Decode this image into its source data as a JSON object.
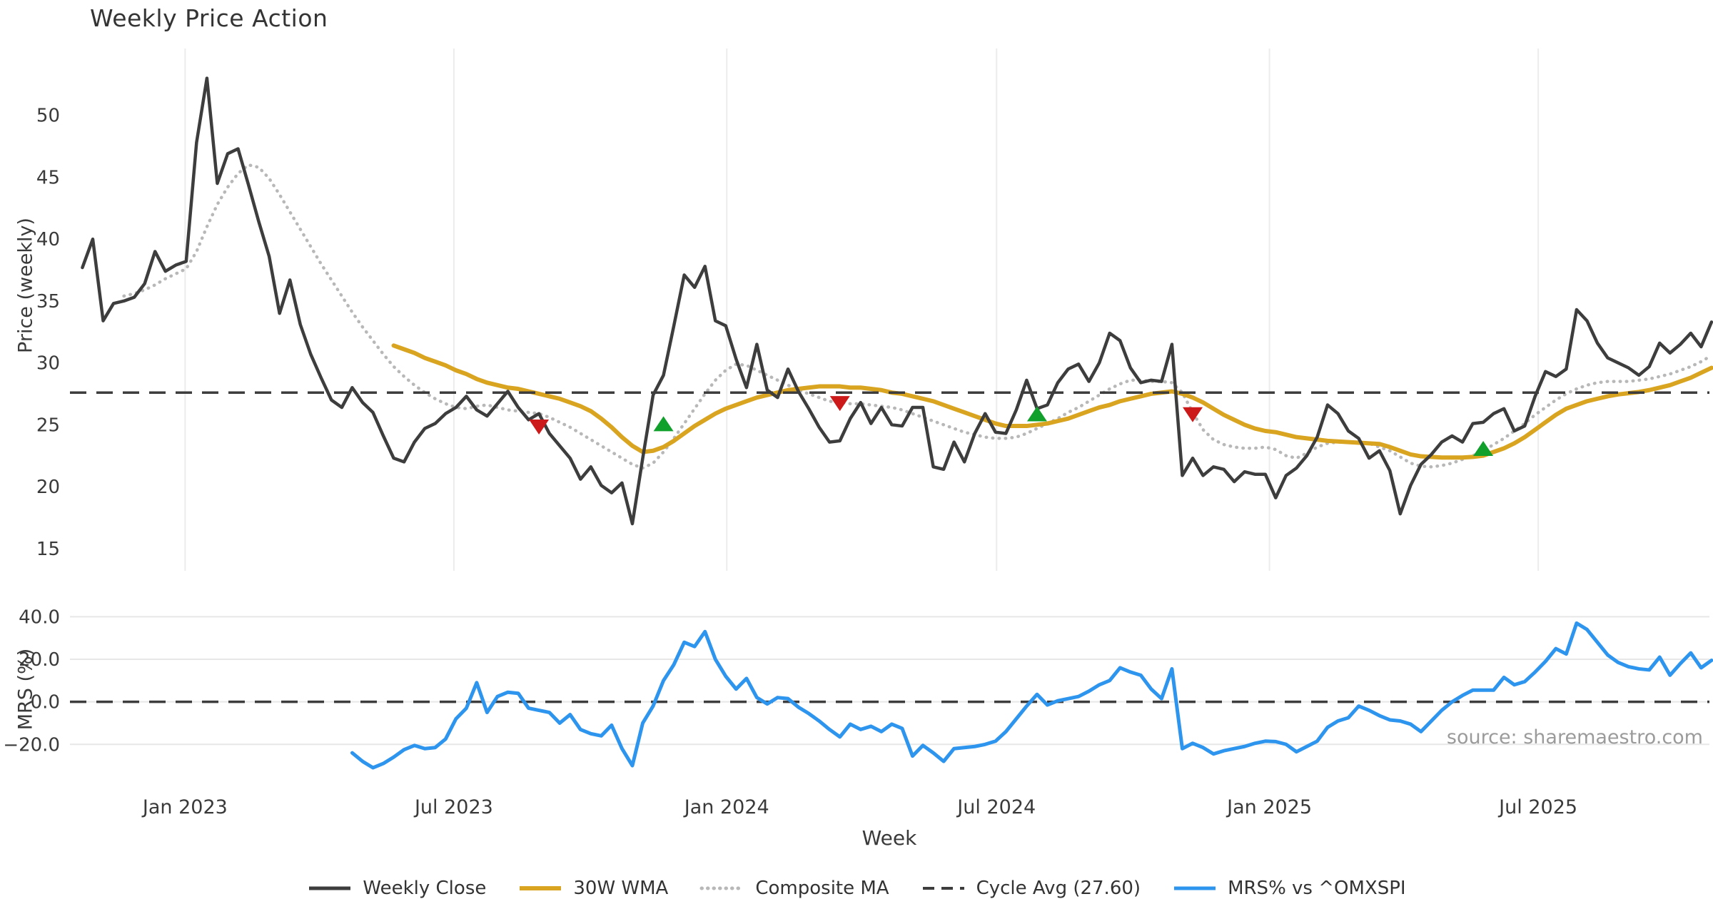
{
  "title": "Weekly Price Action",
  "xlabel": "Week",
  "source_text": "source: sharemaestro.com",
  "colors": {
    "weekly_close": "#3d3d3d",
    "wma30": "#d9a41f",
    "composite": "#b8b8b8",
    "cycle_avg": "#3d3d3d",
    "mrs": "#2e95ee",
    "sell_marker": "#cc1a1a",
    "buy_marker": "#12a02d",
    "grid": "#ececec",
    "tick_text": "#3a3a3a"
  },
  "legend": [
    {
      "label": "Weekly Close",
      "color": "#3d3d3d",
      "style": "solid",
      "width": 5
    },
    {
      "label": "30W WMA",
      "color": "#d9a41f",
      "style": "solid",
      "width": 6
    },
    {
      "label": "Composite MA",
      "color": "#b8b8b8",
      "style": "dotted",
      "width": 5
    },
    {
      "label": "Cycle Avg (27.60)",
      "color": "#3d3d3d",
      "style": "dashed",
      "width": 4
    },
    {
      "label": "MRS% vs ^OMXSPI",
      "color": "#2e95ee",
      "style": "solid",
      "width": 5
    }
  ],
  "chart_data": {
    "type": "line",
    "title": "Weekly Price Action",
    "xlabel": "Week",
    "x_unit": "weeks since 2022-10-24 (weekly data)",
    "xlim": [
      -1.2,
      156.8
    ],
    "x_ticks": [
      {
        "label": "Jan 2023",
        "week": 9.9
      },
      {
        "label": "Jul 2023",
        "week": 35.8
      },
      {
        "label": "Jan 2024",
        "week": 62.1
      },
      {
        "label": "Jul 2024",
        "week": 88.1
      },
      {
        "label": "Jan 2025",
        "week": 114.4
      },
      {
        "label": "Jul 2025",
        "week": 140.3
      }
    ],
    "panels": [
      {
        "id": "price",
        "ylabel": "Price (weekly)",
        "ylim": [
          13.2,
          55.4
        ],
        "yticks": [
          15,
          20,
          25,
          30,
          35,
          40,
          45,
          50
        ],
        "ytick_labels": [
          "15",
          "20",
          "25",
          "30",
          "35",
          "40",
          "45",
          "50"
        ],
        "grid": "vertical",
        "cycle_avg": 27.6,
        "series": [
          {
            "name": "Composite MA",
            "color": "#b8b8b8",
            "width": 4.5,
            "dash": "dotted",
            "start_week": 4,
            "values": [
              35.4,
              35.6,
              35.9,
              36.3,
              36.8,
              37.2,
              37.6,
              39.0,
              41.0,
              42.8,
              44.2,
              45.3,
              46.0,
              45.8,
              44.9,
              43.6,
              42.2,
              40.8,
              39.4,
              38.0,
              36.7,
              35.4,
              34.1,
              32.9,
              31.8,
              30.7,
              29.7,
              28.9,
              28.2,
              27.6,
              27.1,
              26.7,
              26.4,
              26.3,
              26.5,
              26.6,
              26.4,
              26.2,
              26.1,
              26.0,
              25.9,
              25.6,
              25.2,
              24.8,
              24.3,
              23.8,
              23.3,
              22.8,
              22.3,
              21.8,
              21.5,
              21.9,
              22.8,
              23.9,
              25.1,
              26.3,
              27.5,
              28.6,
              29.4,
              29.9,
              29.8,
              29.4,
              29.0,
              28.6,
              28.2,
              27.8,
              27.5,
              27.2,
              26.9,
              26.8,
              26.7,
              26.7,
              26.6,
              26.5,
              26.4,
              26.2,
              25.9,
              25.6,
              25.3,
              25.0,
              24.7,
              24.4,
              24.2,
              24.0,
              23.9,
              23.9,
              24.0,
              24.3,
              24.7,
              25.1,
              25.5,
              26.0,
              26.4,
              26.9,
              27.4,
              27.9,
              28.3,
              28.6,
              28.6,
              28.5,
              28.5,
              28.4,
              27.6,
              26.0,
              24.6,
              23.8,
              23.4,
              23.2,
              23.1,
              23.1,
              23.2,
              23.0,
              22.5,
              22.3,
              22.7,
              23.2,
              23.5,
              23.6,
              23.6,
              23.65,
              23.5,
              23.2,
              22.9,
              22.4,
              21.9,
              21.65,
              21.6,
              21.7,
              21.9,
              22.2,
              22.5,
              22.9,
              23.4,
              23.9,
              24.5,
              25.1,
              25.8,
              26.4,
              27.0,
              27.5,
              27.9,
              28.2,
              28.4,
              28.5,
              28.5,
              28.5,
              28.6,
              28.7,
              28.9,
              29.1,
              29.4,
              29.7,
              30.1,
              30.6
            ]
          },
          {
            "name": "30W WMA",
            "color": "#d9a41f",
            "width": 6,
            "dash": null,
            "start_week": 30,
            "values": [
              31.4,
              31.1,
              30.8,
              30.4,
              30.1,
              29.8,
              29.4,
              29.1,
              28.7,
              28.4,
              28.2,
              28.0,
              27.9,
              27.7,
              27.5,
              27.3,
              27.1,
              26.8,
              26.5,
              26.1,
              25.5,
              24.8,
              24.0,
              23.3,
              22.8,
              22.9,
              23.2,
              23.7,
              24.3,
              24.9,
              25.4,
              25.9,
              26.3,
              26.6,
              26.9,
              27.2,
              27.4,
              27.6,
              27.8,
              27.9,
              28.0,
              28.1,
              28.1,
              28.1,
              28.0,
              28.0,
              27.9,
              27.8,
              27.6,
              27.5,
              27.3,
              27.1,
              26.9,
              26.6,
              26.3,
              26.0,
              25.7,
              25.4,
              25.1,
              24.9,
              24.9,
              24.9,
              25.0,
              25.1,
              25.3,
              25.5,
              25.8,
              26.1,
              26.4,
              26.6,
              26.9,
              27.1,
              27.3,
              27.5,
              27.6,
              27.7,
              27.5,
              27.2,
              26.8,
              26.3,
              25.8,
              25.4,
              25.0,
              24.7,
              24.5,
              24.4,
              24.2,
              24.0,
              23.9,
              23.8,
              23.7,
              23.65,
              23.6,
              23.55,
              23.5,
              23.45,
              23.2,
              22.9,
              22.6,
              22.45,
              22.4,
              22.35,
              22.35,
              22.35,
              22.4,
              22.5,
              22.8,
              23.1,
              23.5,
              24.0,
              24.6,
              25.2,
              25.8,
              26.3,
              26.6,
              26.9,
              27.1,
              27.3,
              27.45,
              27.55,
              27.65,
              27.8,
              28.0,
              28.2,
              28.5,
              28.8,
              29.2,
              29.6
            ]
          },
          {
            "name": "Weekly Close",
            "color": "#3d3d3d",
            "width": 4.5,
            "dash": null,
            "start_week": 0,
            "values": [
              37.7,
              40.0,
              33.4,
              34.8,
              35.0,
              35.3,
              36.4,
              39.0,
              37.4,
              37.9,
              38.2,
              47.8,
              53.0,
              44.5,
              46.9,
              47.3,
              44.4,
              41.4,
              38.6,
              34.0,
              36.7,
              33.1,
              30.7,
              28.8,
              27.0,
              26.4,
              28.0,
              26.8,
              26.0,
              24.1,
              22.3,
              22.0,
              23.6,
              24.7,
              25.1,
              25.9,
              26.4,
              27.3,
              26.2,
              25.7,
              26.7,
              27.7,
              26.4,
              25.4,
              25.9,
              24.3,
              23.3,
              22.3,
              20.6,
              21.6,
              20.1,
              19.5,
              20.3,
              17.0,
              22.3,
              27.4,
              29.0,
              33.0,
              37.1,
              36.1,
              37.8,
              33.4,
              33.0,
              30.3,
              28.0,
              31.5,
              27.8,
              27.2,
              29.5,
              27.7,
              26.3,
              24.8,
              23.6,
              23.7,
              25.5,
              26.8,
              25.1,
              26.4,
              25.0,
              24.9,
              26.4,
              26.4,
              21.6,
              21.4,
              23.6,
              22.0,
              24.3,
              25.9,
              24.4,
              24.3,
              26.2,
              28.6,
              26.3,
              26.6,
              28.4,
              29.5,
              29.9,
              28.5,
              30.0,
              32.4,
              31.8,
              29.6,
              28.4,
              28.6,
              28.5,
              31.5,
              20.9,
              22.3,
              20.9,
              21.6,
              21.4,
              20.4,
              21.2,
              21.0,
              21.0,
              19.1,
              20.9,
              21.5,
              22.5,
              24.0,
              26.6,
              25.9,
              24.5,
              23.9,
              22.3,
              22.9,
              21.3,
              17.8,
              20.1,
              21.8,
              22.6,
              23.6,
              24.1,
              23.6,
              25.1,
              25.2,
              25.9,
              26.3,
              24.5,
              24.9,
              27.3,
              29.3,
              28.9,
              29.5,
              34.3,
              33.4,
              31.6,
              30.4,
              30.0,
              29.6,
              29.0,
              29.7,
              31.6,
              30.8,
              31.5,
              32.4,
              31.3,
              33.3
            ]
          }
        ],
        "markers": {
          "sell": {
            "symbol": "triangle-down",
            "color": "#cc1a1a",
            "points": [
              [
                44,
                24.9
              ],
              [
                73,
                26.8
              ],
              [
                107,
                25.9
              ]
            ]
          },
          "buy": {
            "symbol": "triangle-up",
            "color": "#12a02d",
            "points": [
              [
                56,
                25.0
              ],
              [
                92,
                25.8
              ],
              [
                135,
                23.0
              ]
            ]
          }
        }
      },
      {
        "id": "mrs",
        "ylabel": "MRS (%)",
        "ylim": [
          -34,
          45.5
        ],
        "yticks": [
          -20,
          0,
          20,
          40
        ],
        "ytick_labels": [
          "−20.0",
          "0.0",
          "20.0",
          "40.0"
        ],
        "grid": "horizontal",
        "zero_line_dashed": true,
        "series": [
          {
            "name": "MRS% vs ^OMXSPI",
            "color": "#2e95ee",
            "width": 5,
            "dash": null,
            "start_week": 26,
            "values": [
              -24,
              -28,
              -31,
              -29,
              -26,
              -22.5,
              -20.5,
              -22,
              -21.5,
              -17.5,
              -8,
              -3,
              9,
              -5,
              2.5,
              4.5,
              4,
              -3,
              -4,
              -5,
              -10,
              -6,
              -13,
              -15,
              -16,
              -11,
              -22,
              -30,
              -10,
              -2,
              10,
              17.5,
              28,
              26,
              33,
              20,
              12,
              6,
              11,
              2,
              -1,
              2,
              1.5,
              -2.5,
              -5.5,
              -9,
              -13,
              -16.5,
              -10.5,
              -13,
              -11.5,
              -14,
              -10.5,
              -12.5,
              -25.5,
              -20.5,
              -24,
              -28,
              -22,
              -21.5,
              -21,
              -20,
              -18.5,
              -14,
              -8,
              -2,
              3.5,
              -1.5,
              0.5,
              1.5,
              2.5,
              5,
              8,
              10,
              16,
              14,
              12.5,
              6,
              1.5,
              15.5,
              -22,
              -19.5,
              -21.5,
              -24.5,
              -23,
              -22,
              -21,
              -19.5,
              -18.5,
              -18.7,
              -20,
              -23.5,
              -21,
              -18.5,
              -12,
              -9,
              -7.5,
              -2,
              -4,
              -6.5,
              -8.5,
              -9,
              -10.5,
              -14,
              -9,
              -4,
              0,
              3,
              5.5,
              5.5,
              5.5,
              11.5,
              8,
              9.5,
              14,
              19,
              25,
              22.5,
              37,
              34,
              28,
              22,
              18.5,
              16.5,
              15.5,
              15,
              21,
              12.5,
              18,
              23,
              16,
              19.5
            ]
          }
        ]
      }
    ]
  }
}
